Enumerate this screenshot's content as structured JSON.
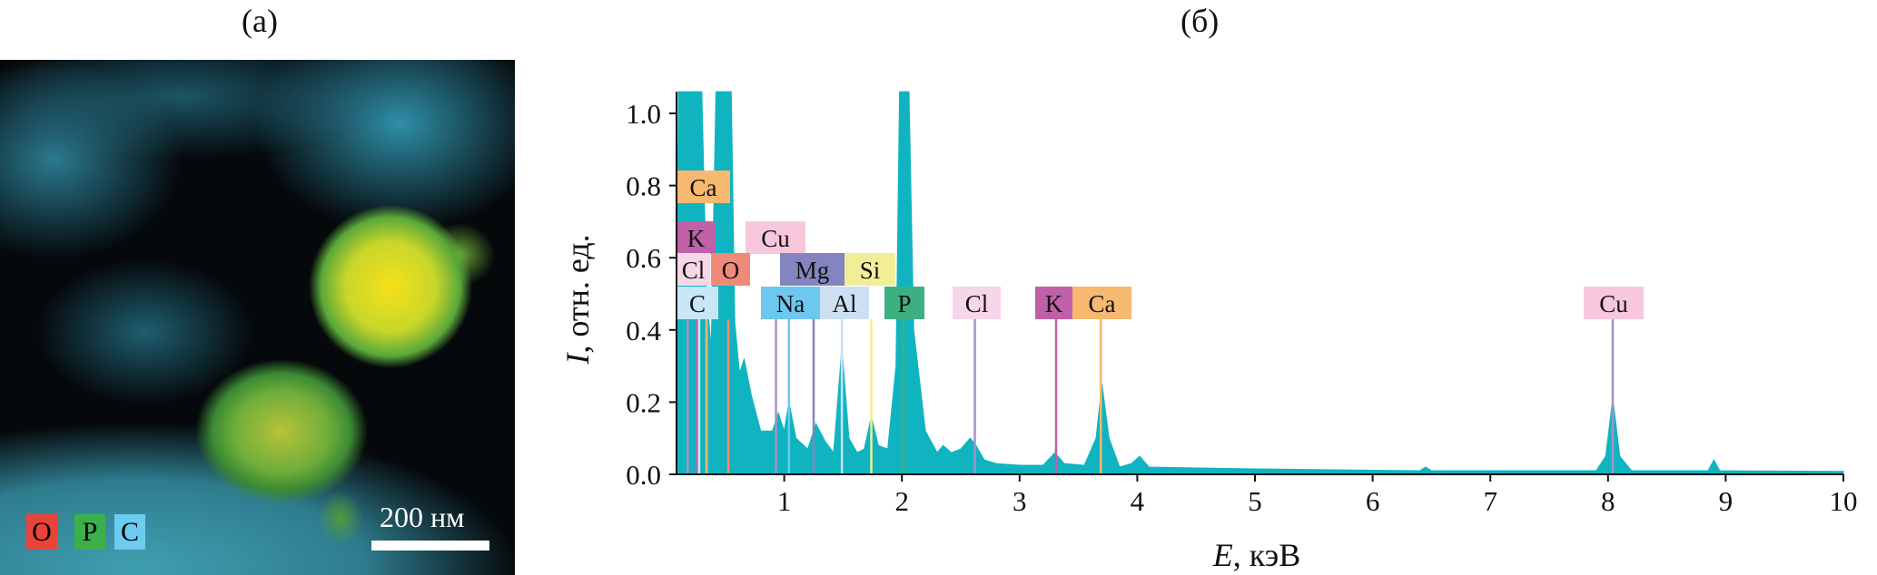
{
  "panel_a": {
    "label": "(a)",
    "legend": [
      {
        "text": "O",
        "color": "#e8443a"
      },
      {
        "text": "P",
        "color": "#3cb04a"
      },
      {
        "text": "C",
        "color": "#6ccbee"
      }
    ],
    "scale_bar_label": "200 нм"
  },
  "panel_b": {
    "label": "(б)"
  },
  "chart_data": {
    "type": "area",
    "title": "",
    "xlabel": "E, кэВ",
    "xlabel_italic": "E",
    "xlabel_rest": ", кэВ",
    "ylabel": "I, отн. ед.",
    "ylabel_italic": "I",
    "ylabel_rest": ", отн. ед.",
    "xlim": [
      0.08,
      10
    ],
    "ylim": [
      0,
      1.06
    ],
    "xticks": [
      "1",
      "2",
      "3",
      "4",
      "5",
      "6",
      "7",
      "8",
      "9",
      "10"
    ],
    "xtick_values": [
      1,
      2,
      3,
      4,
      5,
      6,
      7,
      8,
      9,
      10
    ],
    "yticks": [
      "0.0",
      "0.2",
      "0.4",
      "0.6",
      "0.8",
      "1.0"
    ],
    "ytick_values": [
      0,
      0.2,
      0.4,
      0.6,
      0.8,
      1.0
    ],
    "grid": false,
    "series_color": "#10b4c0",
    "spectrum": [
      [
        0.08,
        0
      ],
      [
        0.1,
        1.06
      ],
      [
        0.3,
        1.06
      ],
      [
        0.34,
        0.5
      ],
      [
        0.38,
        0.35
      ],
      [
        0.42,
        1.06
      ],
      [
        0.55,
        1.06
      ],
      [
        0.58,
        0.42
      ],
      [
        0.62,
        0.28
      ],
      [
        0.66,
        0.32
      ],
      [
        0.72,
        0.22
      ],
      [
        0.8,
        0.12
      ],
      [
        0.9,
        0.12
      ],
      [
        0.95,
        0.17
      ],
      [
        1.0,
        0.12
      ],
      [
        1.04,
        0.2
      ],
      [
        1.1,
        0.1
      ],
      [
        1.2,
        0.07
      ],
      [
        1.27,
        0.14
      ],
      [
        1.35,
        0.09
      ],
      [
        1.42,
        0.06
      ],
      [
        1.49,
        0.35
      ],
      [
        1.55,
        0.1
      ],
      [
        1.62,
        0.06
      ],
      [
        1.68,
        0.07
      ],
      [
        1.74,
        0.16
      ],
      [
        1.8,
        0.08
      ],
      [
        1.88,
        0.07
      ],
      [
        1.95,
        0.3
      ],
      [
        1.98,
        1.06
      ],
      [
        2.06,
        1.06
      ],
      [
        2.1,
        0.4
      ],
      [
        2.2,
        0.12
      ],
      [
        2.3,
        0.06
      ],
      [
        2.35,
        0.08
      ],
      [
        2.42,
        0.06
      ],
      [
        2.5,
        0.07
      ],
      [
        2.58,
        0.1
      ],
      [
        2.63,
        0.08
      ],
      [
        2.7,
        0.04
      ],
      [
        2.8,
        0.03
      ],
      [
        3.0,
        0.025
      ],
      [
        3.2,
        0.025
      ],
      [
        3.3,
        0.06
      ],
      [
        3.38,
        0.03
      ],
      [
        3.55,
        0.025
      ],
      [
        3.65,
        0.1
      ],
      [
        3.7,
        0.25
      ],
      [
        3.76,
        0.1
      ],
      [
        3.85,
        0.02
      ],
      [
        3.95,
        0.03
      ],
      [
        4.02,
        0.05
      ],
      [
        4.1,
        0.02
      ],
      [
        5.0,
        0.015
      ],
      [
        6.4,
        0.01
      ],
      [
        6.45,
        0.02
      ],
      [
        6.5,
        0.01
      ],
      [
        7.9,
        0.01
      ],
      [
        7.98,
        0.05
      ],
      [
        8.04,
        0.21
      ],
      [
        8.1,
        0.05
      ],
      [
        8.2,
        0.01
      ],
      [
        8.85,
        0.01
      ],
      [
        8.9,
        0.04
      ],
      [
        8.95,
        0.01
      ],
      [
        10,
        0.008
      ],
      [
        10,
        0
      ]
    ],
    "markers": [
      {
        "element": "Ca",
        "energy": 0.34,
        "color": "#f7b870"
      },
      {
        "element": "K",
        "energy": 0.26,
        "color": "#c060a8"
      },
      {
        "element": "Cu",
        "energy": 0.93,
        "color": "#f7c8dc"
      },
      {
        "element": "Cl",
        "energy": 0.18,
        "color": "#f7d6e8"
      },
      {
        "element": "O",
        "energy": 0.525,
        "color": "#f08a78"
      },
      {
        "element": "Mg",
        "energy": 1.25,
        "color": "#8484c0"
      },
      {
        "element": "Si",
        "energy": 1.74,
        "color": "#f2ee98"
      },
      {
        "element": "C",
        "energy": 0.277,
        "color": "#c8e6f5"
      },
      {
        "element": "Na",
        "energy": 1.04,
        "color": "#6cc8ee"
      },
      {
        "element": "Al",
        "energy": 1.49,
        "color": "#cde0f3"
      },
      {
        "element": "P",
        "energy": 2.01,
        "color": "#3cb080"
      },
      {
        "element": "Cl",
        "energy": 2.62,
        "color": "#f7d6e8"
      },
      {
        "element": "K",
        "energy": 3.31,
        "color": "#c060a8"
      },
      {
        "element": "Ca",
        "energy": 3.69,
        "color": "#f7b870"
      },
      {
        "element": "Cu",
        "energy": 8.04,
        "color": "#f7c8dc"
      }
    ]
  }
}
